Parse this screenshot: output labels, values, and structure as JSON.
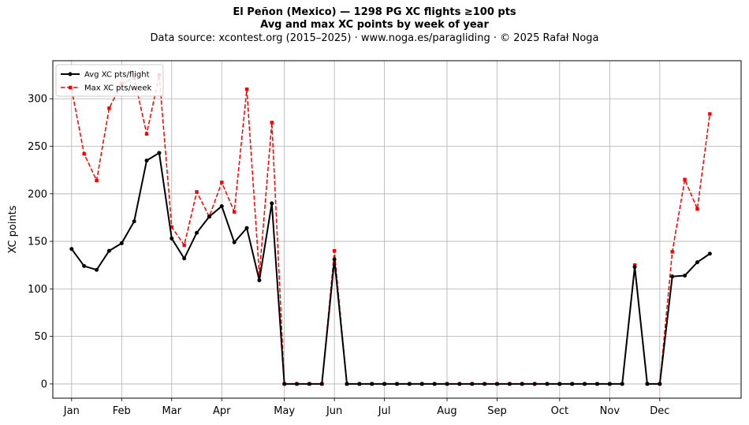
{
  "chart_data": {
    "type": "line",
    "title": "El Peñon (Mexico)  —  1298 PG XC flights ≥100 pts",
    "subtitle": "Avg and max XC points by week of year",
    "source": "Data source: xcontest.org (2015–2025)  ·  www.noga.es/paragliding  ·  © 2025 Rafał Noga",
    "xlabel": "",
    "ylabel": "XC points",
    "ylim": [
      -15,
      340
    ],
    "yticks": [
      0,
      50,
      100,
      150,
      200,
      250,
      300
    ],
    "xlim": [
      -1.5,
      53.5
    ],
    "x_ticks": [
      {
        "label": "Jan",
        "week": 0
      },
      {
        "label": "Feb",
        "week": 4
      },
      {
        "label": "Mar",
        "week": 8
      },
      {
        "label": "Apr",
        "week": 12
      },
      {
        "label": "May",
        "week": 17
      },
      {
        "label": "Jun",
        "week": 21
      },
      {
        "label": "Jul",
        "week": 25
      },
      {
        "label": "Aug",
        "week": 30
      },
      {
        "label": "Sep",
        "week": 34
      },
      {
        "label": "Oct",
        "week": 39
      },
      {
        "label": "Nov",
        "week": 43
      },
      {
        "label": "Dec",
        "week": 47
      }
    ],
    "grid": true,
    "legend_position": "top-left",
    "weeks": [
      0,
      1,
      2,
      3,
      4,
      5,
      6,
      7,
      8,
      9,
      10,
      11,
      12,
      13,
      14,
      15,
      16,
      17,
      18,
      19,
      20,
      21,
      22,
      23,
      24,
      25,
      26,
      27,
      28,
      29,
      30,
      31,
      32,
      33,
      34,
      35,
      36,
      37,
      38,
      39,
      40,
      41,
      42,
      43,
      44,
      45,
      46,
      47,
      48,
      49,
      50,
      51
    ],
    "series": [
      {
        "name": "Avg XC pts/flight",
        "color": "#000000",
        "style": "solid-circle",
        "values": [
          142,
          124,
          120,
          140,
          148,
          171,
          235,
          243,
          153,
          132,
          159,
          176,
          187,
          149,
          164,
          109,
          190,
          0,
          0,
          0,
          0,
          131,
          0,
          0,
          0,
          0,
          0,
          0,
          0,
          0,
          0,
          0,
          0,
          0,
          0,
          0,
          0,
          0,
          0,
          0,
          0,
          0,
          0,
          0,
          0,
          123,
          0,
          0,
          113,
          114,
          128,
          137
        ]
      },
      {
        "name": "Max XC pts/week",
        "color": "#ff0000",
        "style": "dashed-square",
        "values": [
          310,
          242,
          214,
          290,
          316,
          322,
          263,
          325,
          165,
          146,
          202,
          176,
          212,
          181,
          310,
          115,
          275,
          0,
          0,
          0,
          0,
          140,
          0,
          0,
          0,
          0,
          0,
          0,
          0,
          0,
          0,
          0,
          0,
          0,
          0,
          0,
          0,
          0,
          0,
          0,
          0,
          0,
          0,
          0,
          0,
          125,
          0,
          0,
          139,
          215,
          184,
          284
        ]
      }
    ]
  }
}
